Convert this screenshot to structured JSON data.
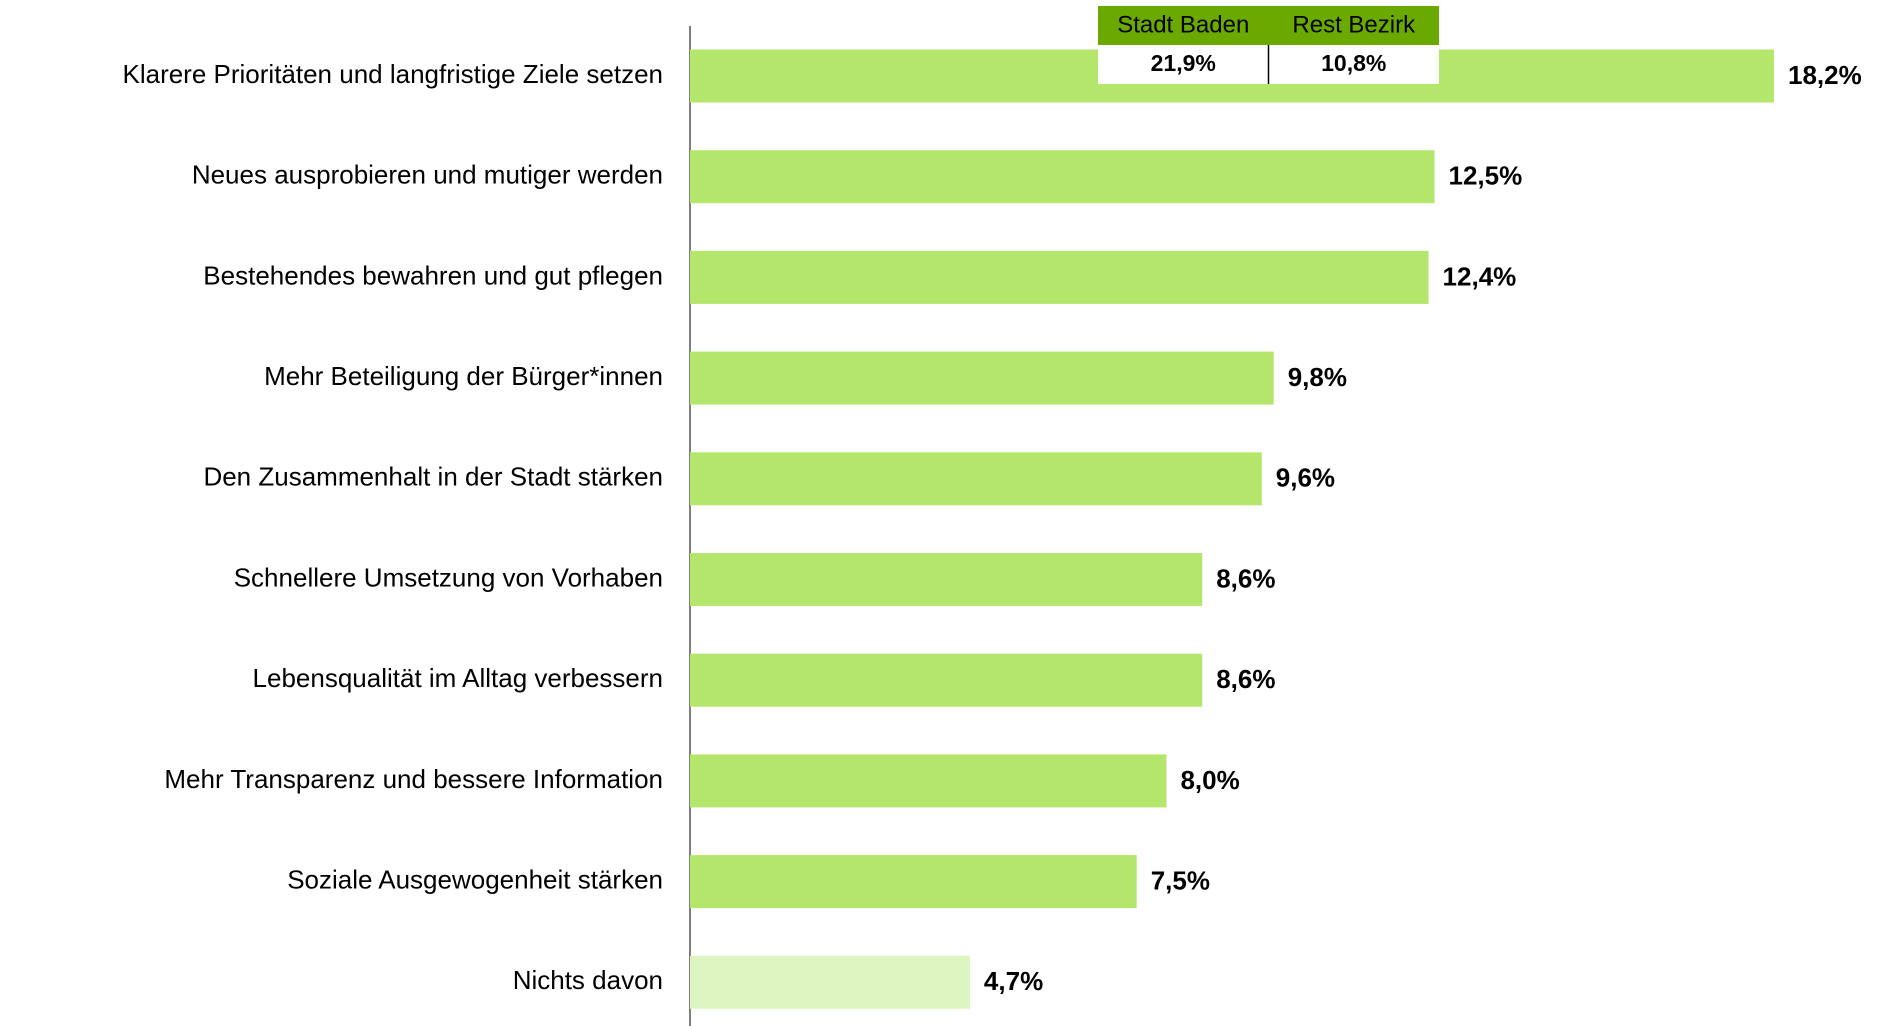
{
  "chart_data": {
    "type": "bar",
    "orientation": "horizontal",
    "categories": [
      "Klarere Prioritäten und langfristige Ziele setzen",
      "Neues ausprobieren und mutiger werden",
      "Bestehendes bewahren und gut pflegen",
      "Mehr Beteiligung der Bürger*innen",
      "Den Zusammenhalt in der Stadt stärken",
      "Schnellere Umsetzung von Vorhaben",
      "Lebensqualität im Alltag verbessern",
      "Mehr Transparenz und bessere Information",
      "Soziale Ausgewogenheit stärken",
      "Nichts davon"
    ],
    "values": [
      18.2,
      12.5,
      12.4,
      9.8,
      9.6,
      8.6,
      8.6,
      8.0,
      7.5,
      4.7
    ],
    "value_labels": [
      "18,2%",
      "12,5%",
      "12,4%",
      "9,8%",
      "9,6%",
      "8,6%",
      "8,6%",
      "8,0%",
      "7,5%",
      "4,7%"
    ],
    "colors": [
      "#b3e66b",
      "#b3e66b",
      "#b3e66b",
      "#b3e66b",
      "#b3e66b",
      "#b3e66b",
      "#b3e66b",
      "#b3e66b",
      "#b3e66b",
      "#dcf5c0"
    ],
    "inset": {
      "header_color": "#6aaa00",
      "columns": [
        {
          "name": "Stadt Baden",
          "value": "21,9%"
        },
        {
          "name": "Rest Bezirk",
          "value": "10,8%"
        }
      ]
    }
  }
}
